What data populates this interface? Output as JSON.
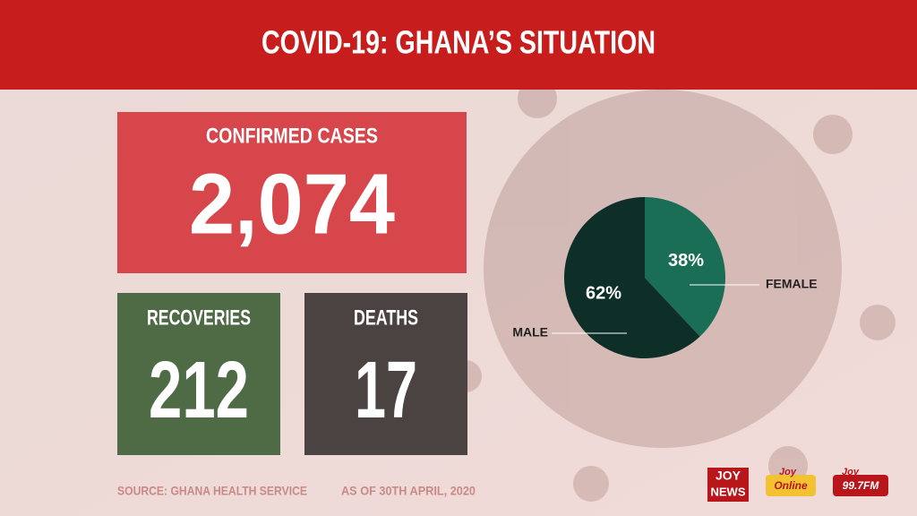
{
  "header": {
    "title": "COVID-19: GHANA’S SITUATION"
  },
  "stats": [
    {
      "label": "CONFIRMED CASES",
      "value": "2,074"
    },
    {
      "label": "RECOVERIES",
      "value": "212"
    },
    {
      "label": "DEATHS",
      "value": "17"
    }
  ],
  "chart_data": {
    "type": "pie",
    "categories": [
      "FEMALE",
      "MALE"
    ],
    "values": [
      38,
      62
    ],
    "value_labels": [
      "38%",
      "62%"
    ],
    "colors": [
      "#1a6e55",
      "#0e2f27"
    ]
  },
  "footer": {
    "source": "SOURCE: GHANA HEALTH SERVICE",
    "date": "AS OF 30TH APRIL, 2020"
  },
  "logos": [
    {
      "line1": "JOY",
      "line2": "NEWS"
    },
    {
      "line1": "Joy",
      "line2": "Online"
    },
    {
      "line1": "Joy",
      "line2": "99.7FM"
    }
  ]
}
